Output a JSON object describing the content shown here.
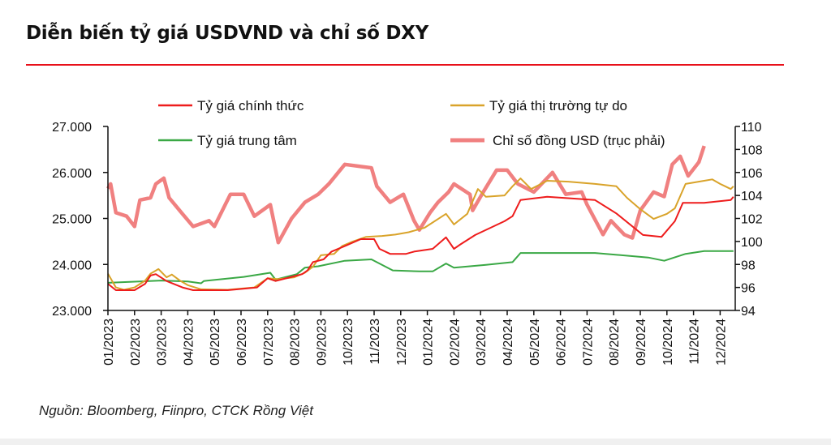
{
  "title": "Diễn biến tỷ giá USDVND và chỉ số DXY",
  "source": "Nguồn: Bloomberg, Fiinpro, CTCK Rồng Việt",
  "chart_data": {
    "type": "line",
    "title": "Diễn biến tỷ giá USDVND và chỉ số DXY",
    "x_ticks": [
      "01/2023",
      "02/2023",
      "03/2023",
      "04/2023",
      "05/2023",
      "06/2023",
      "07/2023",
      "08/2023",
      "09/2023",
      "10/2023",
      "11/2023",
      "12/2023",
      "01/2024",
      "02/2024",
      "03/2024",
      "04/2024",
      "05/2024",
      "06/2024",
      "07/2024",
      "08/2024",
      "09/2024",
      "10/2024",
      "11/2024",
      "12/2024"
    ],
    "y_left": {
      "range": [
        23000,
        27000
      ],
      "ticks": [
        "23.000",
        "24.000",
        "25.000",
        "26.000",
        "27.000"
      ]
    },
    "y_right": {
      "range": [
        94,
        110
      ],
      "ticks": [
        "94",
        "96",
        "98",
        "100",
        "102",
        "104",
        "106",
        "108",
        "110"
      ]
    },
    "grid": false,
    "legend_placement": "top",
    "series": [
      {
        "name": "Tỷ giá chính thức",
        "axis": "left",
        "color": "#ee1c1c",
        "points": [
          [
            "2023-01-01",
            23580
          ],
          [
            "2023-01-10",
            23440
          ],
          [
            "2023-02-01",
            23440
          ],
          [
            "2023-02-13",
            23580
          ],
          [
            "2023-02-19",
            23760
          ],
          [
            "2023-02-25",
            23790
          ],
          [
            "2023-03-07",
            23640
          ],
          [
            "2023-03-25",
            23500
          ],
          [
            "2023-04-07",
            23440
          ],
          [
            "2023-05-16",
            23440
          ],
          [
            "2023-06-19",
            23500
          ],
          [
            "2023-07-01",
            23700
          ],
          [
            "2023-07-10",
            23640
          ],
          [
            "2023-07-28",
            23730
          ],
          [
            "2023-08-10",
            23790
          ],
          [
            "2023-08-16",
            23870
          ],
          [
            "2023-08-22",
            24050
          ],
          [
            "2023-09-04",
            24110
          ],
          [
            "2023-09-13",
            24280
          ],
          [
            "2023-09-28",
            24400
          ],
          [
            "2023-10-16",
            24550
          ],
          [
            "2023-11-01",
            24550
          ],
          [
            "2023-11-07",
            24340
          ],
          [
            "2023-11-19",
            24230
          ],
          [
            "2023-12-07",
            24230
          ],
          [
            "2023-12-16",
            24280
          ],
          [
            "2024-01-07",
            24340
          ],
          [
            "2024-01-22",
            24590
          ],
          [
            "2024-02-01",
            24340
          ],
          [
            "2024-02-07",
            24420
          ],
          [
            "2024-02-25",
            24640
          ],
          [
            "2024-03-28",
            24940
          ],
          [
            "2024-04-07",
            25050
          ],
          [
            "2024-04-16",
            25400
          ],
          [
            "2024-05-16",
            25470
          ],
          [
            "2024-07-10",
            25400
          ],
          [
            "2024-08-04",
            25110
          ],
          [
            "2024-09-04",
            24640
          ],
          [
            "2024-09-25",
            24600
          ],
          [
            "2024-10-10",
            24940
          ],
          [
            "2024-10-19",
            25340
          ],
          [
            "2024-11-13",
            25340
          ],
          [
            "2024-12-13",
            25400
          ],
          [
            "2024-12-16",
            25470
          ]
        ]
      },
      {
        "name": "Tỷ giá thị trường tự do",
        "axis": "left",
        "color": "#d9a32a",
        "points": [
          [
            "2023-01-01",
            23800
          ],
          [
            "2023-01-10",
            23500
          ],
          [
            "2023-01-19",
            23450
          ],
          [
            "2023-02-01",
            23500
          ],
          [
            "2023-02-13",
            23650
          ],
          [
            "2023-02-19",
            23800
          ],
          [
            "2023-02-28",
            23900
          ],
          [
            "2023-03-07",
            23720
          ],
          [
            "2023-03-13",
            23780
          ],
          [
            "2023-03-22",
            23650
          ],
          [
            "2023-04-01",
            23550
          ],
          [
            "2023-04-16",
            23460
          ],
          [
            "2023-05-16",
            23450
          ],
          [
            "2023-06-16",
            23500
          ],
          [
            "2023-07-01",
            23700
          ],
          [
            "2023-07-13",
            23680
          ],
          [
            "2023-08-01",
            23720
          ],
          [
            "2023-08-13",
            23820
          ],
          [
            "2023-08-22",
            23950
          ],
          [
            "2023-09-01",
            24200
          ],
          [
            "2023-09-16",
            24230
          ],
          [
            "2023-09-25",
            24400
          ],
          [
            "2023-10-07",
            24500
          ],
          [
            "2023-10-22",
            24600
          ],
          [
            "2023-11-10",
            24620
          ],
          [
            "2023-11-25",
            24650
          ],
          [
            "2023-12-10",
            24700
          ],
          [
            "2023-12-28",
            24800
          ],
          [
            "2024-01-22",
            25100
          ],
          [
            "2024-02-01",
            24870
          ],
          [
            "2024-02-16",
            25100
          ],
          [
            "2024-02-28",
            25640
          ],
          [
            "2024-03-07",
            25470
          ],
          [
            "2024-03-28",
            25500
          ],
          [
            "2024-04-07",
            25700
          ],
          [
            "2024-04-16",
            25870
          ],
          [
            "2024-04-28",
            25640
          ],
          [
            "2024-05-16",
            25820
          ],
          [
            "2024-06-10",
            25800
          ],
          [
            "2024-07-10",
            25750
          ],
          [
            "2024-08-04",
            25700
          ],
          [
            "2024-08-16",
            25450
          ],
          [
            "2024-09-01",
            25200
          ],
          [
            "2024-09-16",
            24990
          ],
          [
            "2024-10-01",
            25100
          ],
          [
            "2024-10-10",
            25220
          ],
          [
            "2024-10-22",
            25750
          ],
          [
            "2024-11-13",
            25820
          ],
          [
            "2024-11-22",
            25850
          ],
          [
            "2024-12-01",
            25750
          ],
          [
            "2024-12-13",
            25640
          ],
          [
            "2024-12-16",
            25700
          ]
        ]
      },
      {
        "name": "Tỷ giá trung tâm",
        "axis": "left",
        "color": "#3aa845",
        "points": [
          [
            "2023-01-01",
            23600
          ],
          [
            "2023-03-01",
            23650
          ],
          [
            "2023-04-01",
            23630
          ],
          [
            "2023-04-16",
            23590
          ],
          [
            "2023-04-19",
            23640
          ],
          [
            "2023-06-04",
            23730
          ],
          [
            "2023-07-04",
            23820
          ],
          [
            "2023-07-10",
            23670
          ],
          [
            "2023-08-04",
            23790
          ],
          [
            "2023-08-13",
            23930
          ],
          [
            "2023-08-28",
            23960
          ],
          [
            "2023-09-28",
            24080
          ],
          [
            "2023-10-28",
            24110
          ],
          [
            "2023-11-13",
            23960
          ],
          [
            "2023-11-22",
            23870
          ],
          [
            "2023-12-22",
            23850
          ],
          [
            "2024-01-07",
            23850
          ],
          [
            "2024-01-22",
            24020
          ],
          [
            "2024-02-01",
            23930
          ],
          [
            "2024-03-07",
            23990
          ],
          [
            "2024-04-07",
            24050
          ],
          [
            "2024-04-16",
            24250
          ],
          [
            "2024-07-10",
            24250
          ],
          [
            "2024-09-10",
            24150
          ],
          [
            "2024-09-28",
            24080
          ],
          [
            "2024-10-22",
            24230
          ],
          [
            "2024-11-13",
            24290
          ],
          [
            "2024-12-16",
            24290
          ]
        ]
      },
      {
        "name": "Chỉ số đồng USD (trục phải)",
        "axis": "right",
        "color": "#f08080",
        "points": [
          [
            "2023-01-01",
            104.6
          ],
          [
            "2023-01-04",
            105.0
          ],
          [
            "2023-01-10",
            102.5
          ],
          [
            "2023-01-22",
            102.2
          ],
          [
            "2023-02-01",
            101.3
          ],
          [
            "2023-02-07",
            103.6
          ],
          [
            "2023-02-19",
            103.8
          ],
          [
            "2023-02-25",
            105.0
          ],
          [
            "2023-03-04",
            105.5
          ],
          [
            "2023-03-10",
            103.8
          ],
          [
            "2023-03-25",
            102.4
          ],
          [
            "2023-04-07",
            101.3
          ],
          [
            "2023-04-25",
            101.8
          ],
          [
            "2023-05-01",
            101.3
          ],
          [
            "2023-05-19",
            104.1
          ],
          [
            "2023-06-04",
            104.1
          ],
          [
            "2023-06-16",
            102.2
          ],
          [
            "2023-07-04",
            103.2
          ],
          [
            "2023-07-13",
            99.9
          ],
          [
            "2023-07-28",
            102.0
          ],
          [
            "2023-08-13",
            103.4
          ],
          [
            "2023-08-28",
            104.1
          ],
          [
            "2023-09-10",
            105.0
          ],
          [
            "2023-09-28",
            106.7
          ],
          [
            "2023-10-28",
            106.4
          ],
          [
            "2023-11-04",
            104.8
          ],
          [
            "2023-11-19",
            103.4
          ],
          [
            "2023-12-04",
            104.1
          ],
          [
            "2023-12-16",
            101.8
          ],
          [
            "2023-12-22",
            101.0
          ],
          [
            "2024-01-04",
            102.5
          ],
          [
            "2024-01-13",
            103.4
          ],
          [
            "2024-01-25",
            104.3
          ],
          [
            "2024-02-01",
            105.0
          ],
          [
            "2024-02-19",
            104.1
          ],
          [
            "2024-02-22",
            102.7
          ],
          [
            "2024-03-04",
            104.3
          ],
          [
            "2024-03-19",
            106.2
          ],
          [
            "2024-04-01",
            106.2
          ],
          [
            "2024-04-13",
            105.0
          ],
          [
            "2024-05-01",
            104.3
          ],
          [
            "2024-05-22",
            106.0
          ],
          [
            "2024-06-07",
            104.1
          ],
          [
            "2024-06-25",
            104.3
          ],
          [
            "2024-07-01",
            103.2
          ],
          [
            "2024-07-19",
            100.6
          ],
          [
            "2024-07-28",
            101.8
          ],
          [
            "2024-08-13",
            100.6
          ],
          [
            "2024-08-22",
            100.3
          ],
          [
            "2024-09-01",
            102.7
          ],
          [
            "2024-09-16",
            104.3
          ],
          [
            "2024-09-28",
            103.9
          ],
          [
            "2024-10-07",
            106.7
          ],
          [
            "2024-10-16",
            107.4
          ],
          [
            "2024-10-25",
            105.7
          ],
          [
            "2024-11-07",
            106.9
          ],
          [
            "2024-11-13",
            108.3
          ]
        ]
      }
    ]
  }
}
